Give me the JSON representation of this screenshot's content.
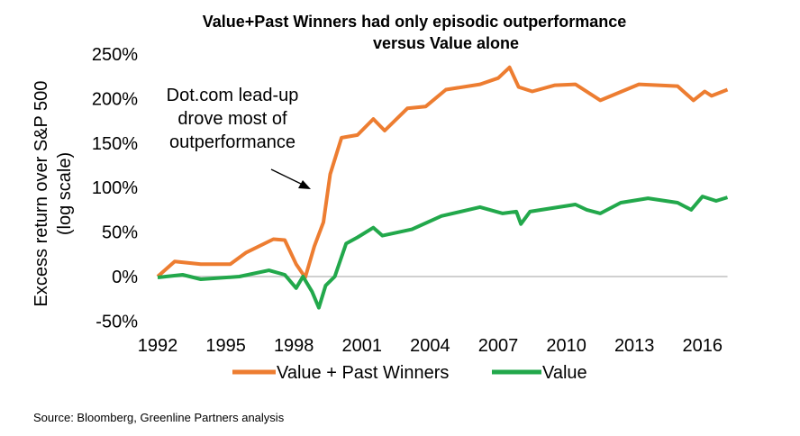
{
  "chart_data": {
    "type": "line",
    "title": [
      "Value+Past Winners had only episodic outperformance",
      "versus Value alone"
    ],
    "ylabel": [
      "Excess return over S&P 500",
      "(log scale)"
    ],
    "xlabel": "",
    "y_ticks": [
      -50,
      0,
      50,
      100,
      150,
      200,
      250
    ],
    "y_tick_labels": [
      "-50%",
      "0%",
      "50%",
      "100%",
      "150%",
      "200%",
      "250%"
    ],
    "ylim": [
      -50,
      250
    ],
    "x_ticks": [
      1992,
      1995,
      1998,
      2001,
      2004,
      2007,
      2010,
      2013,
      2016
    ],
    "x_tick_labels": [
      "1992",
      "1995",
      "1998",
      "2001",
      "2004",
      "2007",
      "2010",
      "2013",
      "2016"
    ],
    "xlim": [
      1992,
      2017.1
    ],
    "y_scale_note": "log scale",
    "grid": false,
    "zero_line": true,
    "legend_position": "bottom",
    "annotation": {
      "lines": [
        "Dot.com lead-up",
        "drove most of",
        "outperformance"
      ],
      "arrow_points_to": [
        1999.5,
        100
      ]
    },
    "series": [
      {
        "name": "Value + Past Winners",
        "color": "#ED7D31",
        "x": [
          1992.0,
          1992.75,
          1993.9,
          1995.2,
          1995.9,
          1997.1,
          1997.6,
          1998.1,
          1998.5,
          1998.9,
          1999.3,
          1999.6,
          2000.1,
          2000.8,
          2001.5,
          2002.0,
          2003.0,
          2003.8,
          2004.7,
          2006.2,
          2007.0,
          2007.5,
          2007.9,
          2008.5,
          2009.5,
          2010.4,
          2011.5,
          2013.2,
          2014.9,
          2015.6,
          2016.1,
          2016.4,
          2017.1
        ],
        "y": [
          0,
          17,
          14,
          14,
          27,
          42,
          41,
          14,
          -1,
          34,
          61,
          115,
          156,
          159,
          177,
          164,
          189,
          191,
          210,
          216,
          223,
          235,
          213,
          208,
          215,
          216,
          198,
          216,
          214,
          198,
          208,
          203,
          210
        ]
      },
      {
        "name": "Value",
        "color": "#22A84B",
        "x": [
          1992.0,
          1993.1,
          1993.9,
          1995.6,
          1996.9,
          1997.6,
          1998.1,
          1998.4,
          1998.8,
          1999.1,
          1999.4,
          1999.8,
          2000.3,
          2000.8,
          2001.5,
          2001.9,
          2003.2,
          2004.5,
          2006.2,
          2007.2,
          2007.8,
          2008.0,
          2008.4,
          2010.4,
          2010.9,
          2011.5,
          2012.4,
          2013.6,
          2014.9,
          2015.5,
          2016.0,
          2016.6,
          2017.1
        ],
        "y": [
          -1,
          2,
          -3,
          0,
          7,
          2,
          -13,
          0,
          -17,
          -35,
          -10,
          0,
          37,
          44,
          55,
          46,
          53,
          68,
          78,
          71,
          73,
          59,
          73,
          81,
          75,
          71,
          83,
          88,
          83,
          75,
          90,
          85,
          89
        ]
      }
    ]
  },
  "source": "Source: Bloomberg, Greenline Partners analysis"
}
